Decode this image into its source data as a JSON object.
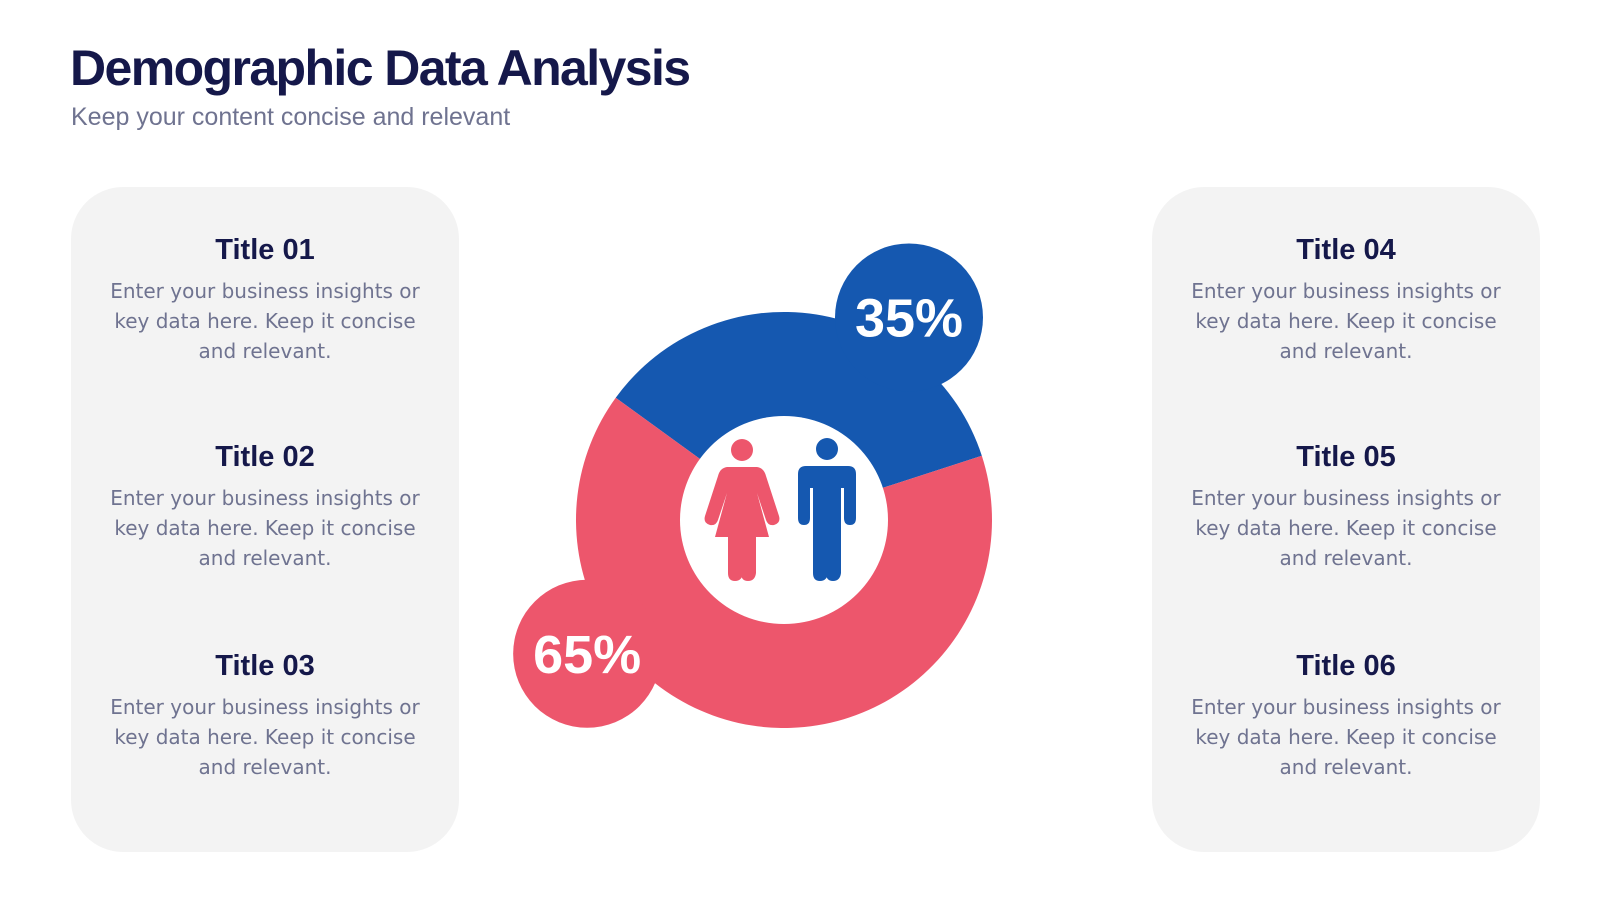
{
  "header": {
    "title": "Demographic Data Analysis",
    "subtitle": "Keep your content concise and relevant"
  },
  "left_panel": {
    "items": [
      {
        "title": "Title 01",
        "text": "Enter your business insights or key data here. Keep it concise and relevant."
      },
      {
        "title": "Title 02",
        "text": "Enter your business insights or key data here. Keep it concise and relevant."
      },
      {
        "title": "Title 03",
        "text": "Enter your business insights or key data here. Keep it concise and relevant."
      }
    ]
  },
  "right_panel": {
    "items": [
      {
        "title": "Title 04",
        "text": "Enter your business insights or key data here. Keep it concise and relevant."
      },
      {
        "title": "Title 05",
        "text": "Enter your business insights or key data here. Keep it concise and relevant."
      },
      {
        "title": "Title 06",
        "text": "Enter your business insights or key data here. Keep it concise and relevant."
      }
    ]
  },
  "center_icons": [
    "female-person-icon",
    "male-person-icon"
  ],
  "colors": {
    "blue": "#1558b0",
    "red": "#ed566c",
    "navy_text": "#15184a",
    "gray_text": "#6f7390",
    "panel_bg": "#f3f3f3"
  },
  "chart_data": {
    "type": "pie",
    "categories": [
      "Male",
      "Female"
    ],
    "values": [
      35,
      65
    ],
    "labels": [
      "35%",
      "65%"
    ],
    "colors": [
      "#1558b0",
      "#ed566c"
    ]
  }
}
